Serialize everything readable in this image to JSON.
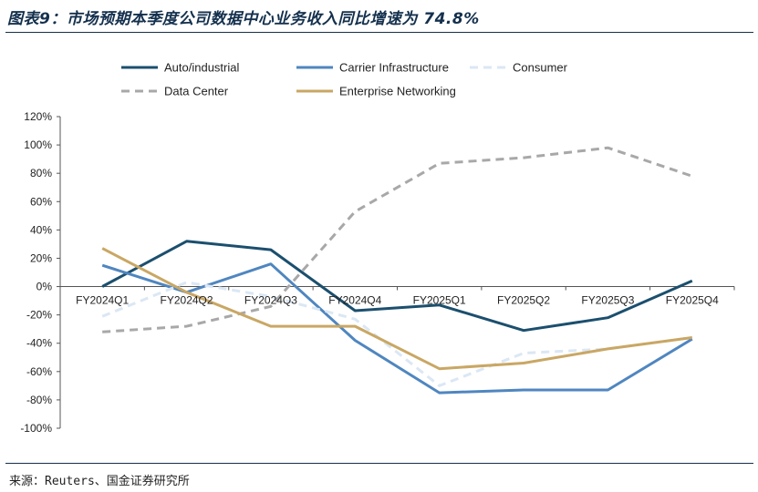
{
  "title": "图表9：市场预期本季度公司数据中心业务收入同比增速为 74.8%",
  "source": "来源：Reuters、国金证券研究所",
  "chart_data": {
    "type": "line",
    "categories": [
      "FY2024Q1",
      "FY2024Q2",
      "FY2024Q3",
      "FY2024Q4",
      "FY2025Q1",
      "FY2025Q2",
      "FY2025Q3",
      "FY2025Q4"
    ],
    "ylim": [
      -100,
      120
    ],
    "yticks": [
      -100,
      -80,
      -60,
      -40,
      -20,
      0,
      20,
      40,
      60,
      80,
      100,
      120
    ],
    "ytick_format": "percent",
    "grid": false,
    "legend_position": "top",
    "series": [
      {
        "name": "Auto/industrial",
        "color": "#1b4f6e",
        "dash": "solid",
        "values": [
          0,
          32,
          26,
          -17,
          -13,
          -31,
          -22,
          4
        ]
      },
      {
        "name": "Carrier Infrastructure",
        "color": "#4f86c0",
        "dash": "solid",
        "values": [
          15,
          -4,
          16,
          -38,
          -75,
          -73,
          -73,
          -37
        ]
      },
      {
        "name": "Consumer",
        "color": "#dbe7f4",
        "dash": "dashed",
        "values": [
          -21,
          3,
          -7,
          -23,
          -70,
          -47,
          -44,
          -36
        ]
      },
      {
        "name": "Data Center",
        "color": "#a8a8a8",
        "dash": "dashed",
        "values": [
          -32,
          -28,
          -14,
          53,
          87,
          91,
          98,
          78
        ]
      },
      {
        "name": "Enterprise Networking",
        "color": "#c9a764",
        "dash": "solid",
        "values": [
          27,
          -4,
          -28,
          -28,
          -58,
          -54,
          -44,
          -36
        ]
      }
    ]
  }
}
